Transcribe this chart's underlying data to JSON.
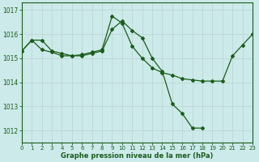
{
  "xlabel": "Graphe pression niveau de la mer (hPa)",
  "background_color": "#cceaea",
  "grid_color": "#c0d8d8",
  "line_color": "#1a5c1a",
  "ylim": [
    1011.5,
    1017.3
  ],
  "xlim": [
    0,
    23
  ],
  "yticks": [
    1012,
    1013,
    1014,
    1015,
    1016,
    1017
  ],
  "xticks": [
    0,
    1,
    2,
    3,
    4,
    5,
    6,
    7,
    8,
    9,
    10,
    11,
    12,
    13,
    14,
    15,
    16,
    17,
    18,
    19,
    20,
    21,
    22,
    23
  ],
  "series1_x": [
    0,
    1,
    2,
    3,
    4,
    5,
    6,
    7,
    8,
    9,
    10,
    11,
    12,
    13,
    14,
    15,
    16,
    17,
    18,
    19,
    20,
    21,
    22,
    23
  ],
  "series1_y": [
    1015.3,
    1015.75,
    1015.35,
    1015.25,
    1015.1,
    1015.1,
    1015.15,
    1015.25,
    1015.35,
    1016.75,
    1016.45,
    1015.5,
    1015.0,
    1014.6,
    1014.4,
    1014.3,
    1014.15,
    1014.1,
    1014.05,
    1014.05,
    1014.05,
    1015.1,
    1015.55,
    1016.0
  ],
  "series2_x": [
    0,
    1,
    2,
    3,
    4,
    5,
    6,
    7,
    8,
    9,
    10,
    11,
    12,
    13,
    14,
    15,
    16,
    17,
    18
  ],
  "series2_y": [
    1015.3,
    1015.75,
    1015.75,
    1015.3,
    1015.2,
    1015.1,
    1015.1,
    1015.2,
    1015.3,
    1016.2,
    1016.55,
    1016.15,
    1015.85,
    1015.0,
    1014.45,
    1013.1,
    1012.7,
    1012.1,
    1012.1
  ]
}
